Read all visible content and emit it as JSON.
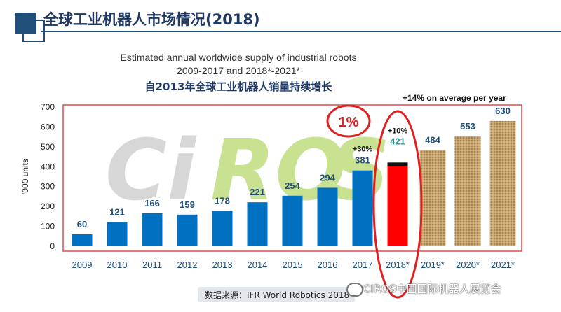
{
  "header": {
    "title": "全球工业机器人市场情况(2018)"
  },
  "chart_data": {
    "type": "bar",
    "title": "Estimated annual worldwide supply of industrial robots",
    "subtitle": "2009-2017 and 2018*-2021*",
    "subtitle_cn": "自2013年全球工业机器人销量持续增长",
    "ylabel": "'000 units",
    "xlabel": "",
    "ylim": [
      0,
      700
    ],
    "yticks": [
      0,
      100,
      200,
      300,
      400,
      500,
      600,
      700
    ],
    "categories": [
      "2009",
      "2010",
      "2011",
      "2012",
      "2013",
      "2014",
      "2015",
      "2016",
      "2017",
      "2018*",
      "2019*",
      "2020*",
      "2021*"
    ],
    "values": [
      60,
      121,
      166,
      159,
      178,
      221,
      254,
      294,
      381,
      421,
      484,
      553,
      630
    ],
    "value_labels": [
      "60",
      "121",
      "166",
      "159",
      "178",
      "221",
      "254",
      "294",
      "381",
      "421",
      "484",
      "553",
      "630"
    ],
    "bar_styles": [
      "actual",
      "actual",
      "actual",
      "actual",
      "actual",
      "actual",
      "actual",
      "actual",
      "actual",
      "highlight",
      "forecast",
      "forecast",
      "forecast"
    ],
    "highlight_top_segment": 17,
    "annotations": {
      "growth_2017": "+30%",
      "growth_2018": "+10%",
      "percent_callout": "1%",
      "average_note": "+14% on average per year"
    },
    "grid": false,
    "legend": "none",
    "colors": {
      "actual": "#0070c0",
      "highlight": "#ff0000",
      "highlight_top": "#111111",
      "forecast": "#c8a46e",
      "axis_labels": "#1f4e79",
      "value_labels": "#1f4e79",
      "value_labels_highlight": "#2e9e8f",
      "frame": "#e04a4a"
    }
  },
  "footer": {
    "source": "数据来源：IFR World Robotics 2018",
    "watermark": "CIROS中国国际机器人展览会"
  }
}
